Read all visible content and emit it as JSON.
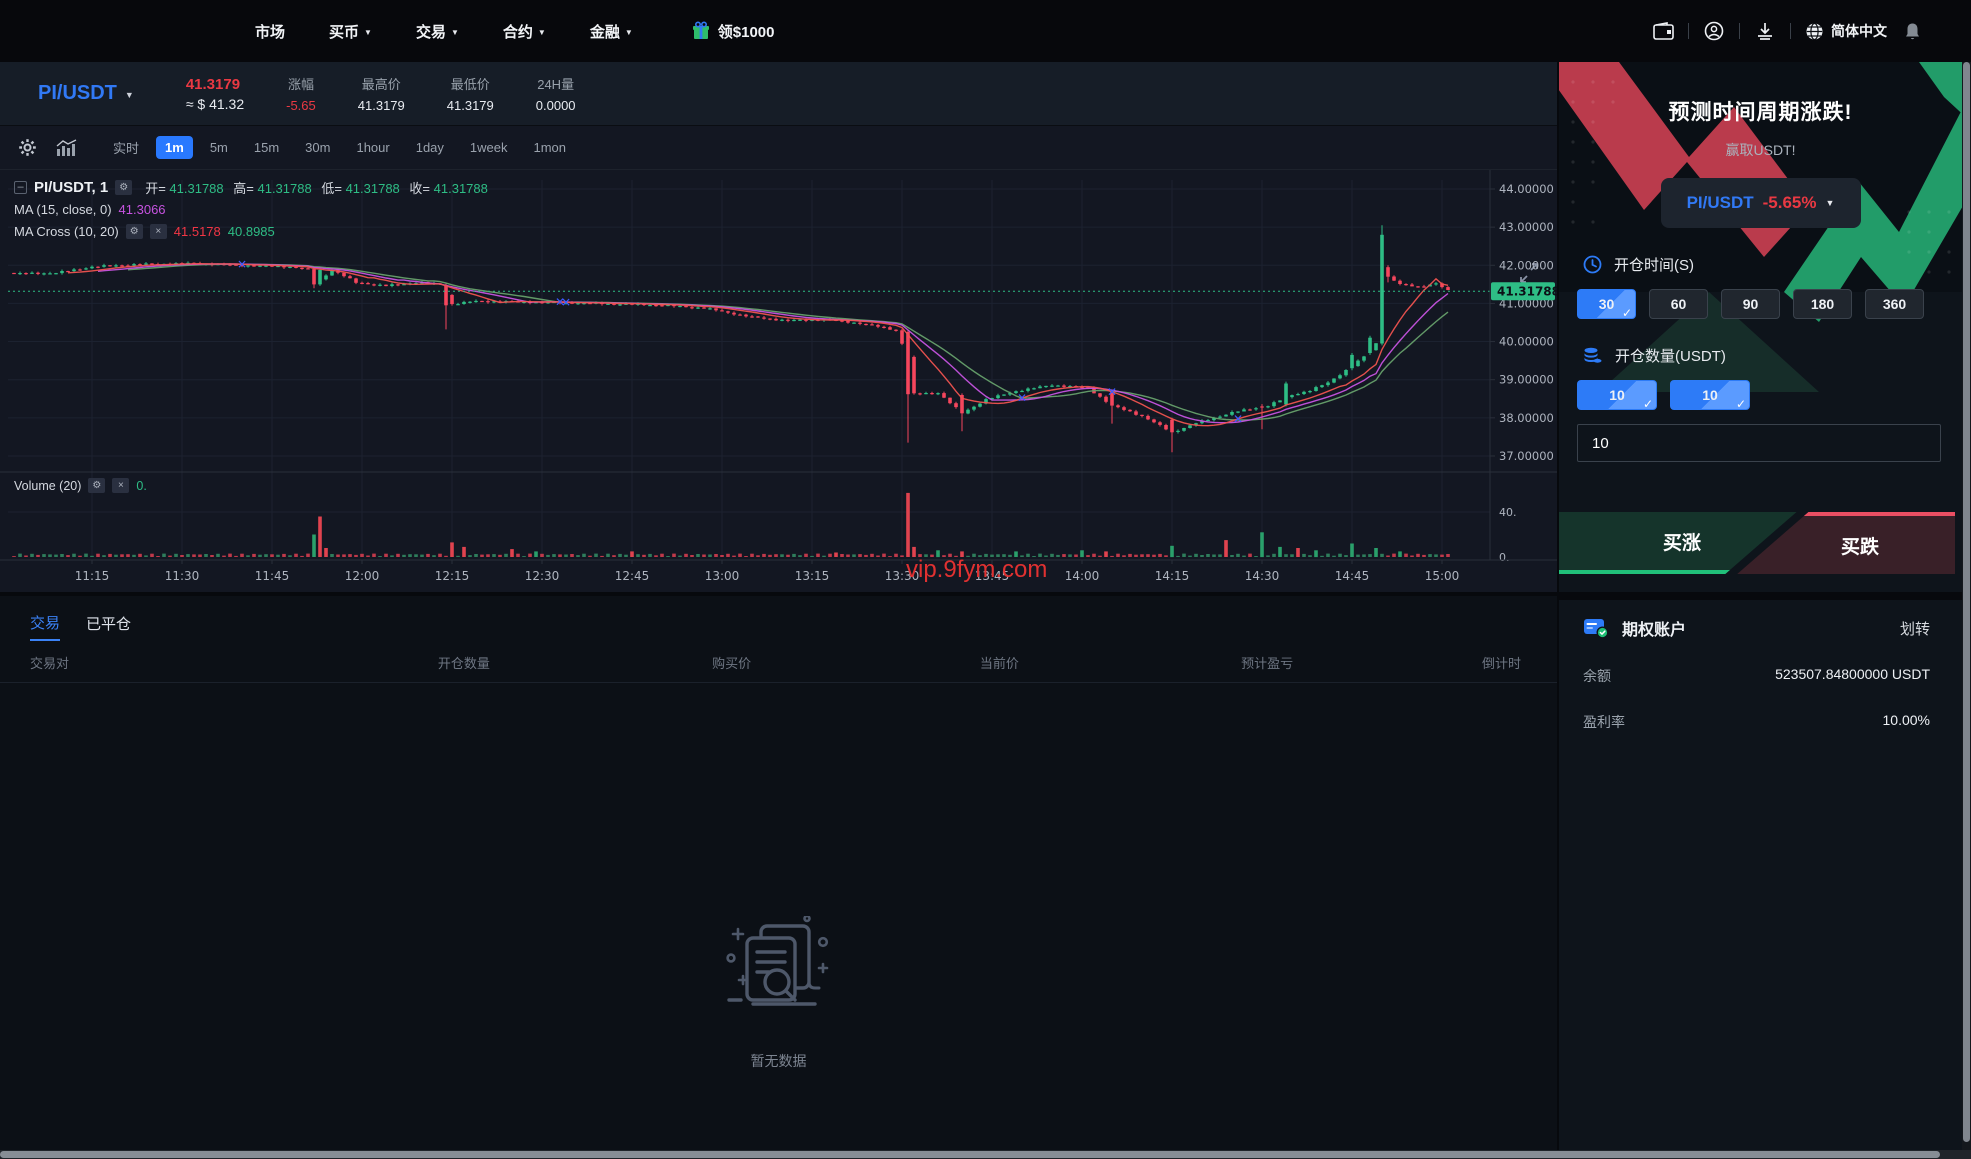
{
  "nav": {
    "items": [
      {
        "label": "市场",
        "dropdown": false
      },
      {
        "label": "买币",
        "dropdown": true
      },
      {
        "label": "交易",
        "dropdown": true
      },
      {
        "label": "合约",
        "dropdown": true
      },
      {
        "label": "金融",
        "dropdown": true
      }
    ],
    "promo": "领$1000",
    "lang": "简体中文"
  },
  "ticker": {
    "pair": "PI/USDT",
    "price": "41.3179",
    "approx": "≈ $ 41.32",
    "stats": [
      {
        "label": "涨幅",
        "value": "-5.65"
      },
      {
        "label": "最高价",
        "value": "41.3179"
      },
      {
        "label": "最低价",
        "value": "41.3179"
      },
      {
        "label": "24H量",
        "value": "0.0000"
      }
    ]
  },
  "toolbar": {
    "intervals": [
      "实时",
      "1m",
      "5m",
      "15m",
      "30m",
      "1hour",
      "1day",
      "1week",
      "1mon"
    ],
    "selected": "1m"
  },
  "chart_data": {
    "type": "candlestick",
    "symbol": "PI/USDT",
    "legend_symbol": "PI/USDT, 1",
    "watermark": "vip.9fym.com",
    "ohlc": {
      "open_label": "开=",
      "high_label": "高=",
      "low_label": "低=",
      "close_label": "收=",
      "open": "41.31788",
      "high": "41.31788",
      "low": "41.31788",
      "close": "41.31788"
    },
    "ma15": {
      "label": "MA (15, close, 0)",
      "value": "41.3066"
    },
    "ma_cross": {
      "label": "MA Cross (10, 20)",
      "fast_value": "41.5178",
      "slow_value": "40.8985"
    },
    "volume": {
      "label": "Volume (20)",
      "value": "0.",
      "ticks": [
        "40.",
        "0."
      ],
      "grid_value": 40
    },
    "current_price": 41.31788,
    "price_tag": "41.31788",
    "y_ticks": [
      "44.00000",
      "43.00000",
      "42.00000",
      "41.00000",
      "40.00000",
      "39.00000",
      "38.00000",
      "37.00000"
    ],
    "x_labels": [
      "11:15",
      "11:30",
      "11:45",
      "12:00",
      "12:15",
      "12:30",
      "12:45",
      "13:00",
      "13:15",
      "13:30",
      "13:45",
      "14:00",
      "14:15",
      "14:30",
      "14:45",
      "15:00"
    ],
    "x_label_first_index": 13,
    "x_label_step": 15,
    "candle_count": 240,
    "price_anchors": [
      [
        0,
        41.78
      ],
      [
        7,
        41.8
      ],
      [
        13,
        41.96
      ],
      [
        20,
        42.02
      ],
      [
        29,
        42.05
      ],
      [
        38,
        42.0
      ],
      [
        46,
        41.96
      ],
      [
        49,
        41.9
      ],
      [
        51,
        41.62
      ],
      [
        53,
        41.88
      ],
      [
        57,
        41.55
      ],
      [
        62,
        41.46
      ],
      [
        67,
        41.55
      ],
      [
        71,
        41.5
      ],
      [
        73,
        40.98
      ],
      [
        77,
        41.06
      ],
      [
        87,
        41.03
      ],
      [
        97,
        41.0
      ],
      [
        107,
        40.96
      ],
      [
        115,
        40.88
      ],
      [
        123,
        40.64
      ],
      [
        129,
        40.55
      ],
      [
        135,
        40.58
      ],
      [
        141,
        40.48
      ],
      [
        147,
        40.3
      ],
      [
        149,
        39.6
      ],
      [
        150,
        38.62
      ],
      [
        154,
        38.66
      ],
      [
        158,
        38.12
      ],
      [
        162,
        38.48
      ],
      [
        167,
        38.7
      ],
      [
        173,
        38.86
      ],
      [
        179,
        38.78
      ],
      [
        183,
        38.32
      ],
      [
        188,
        38.05
      ],
      [
        193,
        37.62
      ],
      [
        197,
        37.86
      ],
      [
        203,
        38.14
      ],
      [
        209,
        38.32
      ],
      [
        213,
        38.6
      ],
      [
        216,
        38.72
      ],
      [
        219,
        38.92
      ],
      [
        222,
        39.25
      ],
      [
        225,
        39.6
      ],
      [
        227,
        39.95
      ],
      [
        228,
        42.8
      ],
      [
        229,
        41.7
      ],
      [
        231,
        41.5
      ],
      [
        234,
        41.44
      ],
      [
        237,
        41.52
      ],
      [
        239,
        41.33
      ]
    ],
    "feature_candles": [
      {
        "i": 50,
        "o": 41.9,
        "h": 41.94,
        "l": 41.4,
        "c": 41.5
      },
      {
        "i": 51,
        "o": 41.5,
        "h": 41.9,
        "l": 41.46,
        "c": 41.88
      },
      {
        "i": 72,
        "o": 41.48,
        "h": 41.52,
        "l": 40.32,
        "c": 40.95
      },
      {
        "i": 149,
        "o": 40.25,
        "h": 40.3,
        "l": 37.35,
        "c": 38.62
      },
      {
        "i": 158,
        "o": 38.6,
        "h": 38.64,
        "l": 37.65,
        "c": 38.12
      },
      {
        "i": 183,
        "o": 38.7,
        "h": 38.74,
        "l": 37.85,
        "c": 38.32
      },
      {
        "i": 193,
        "o": 37.95,
        "h": 38.0,
        "l": 37.1,
        "c": 37.62
      },
      {
        "i": 208,
        "o": 38.3,
        "h": 38.36,
        "l": 37.7,
        "c": 38.28
      },
      {
        "i": 212,
        "o": 38.35,
        "h": 38.95,
        "l": 38.3,
        "c": 38.9
      },
      {
        "i": 223,
        "o": 39.3,
        "h": 39.7,
        "l": 39.25,
        "c": 39.65
      },
      {
        "i": 226,
        "o": 39.7,
        "h": 40.15,
        "l": 39.65,
        "c": 40.1
      },
      {
        "i": 228,
        "o": 39.95,
        "h": 43.05,
        "l": 39.9,
        "c": 42.8
      },
      {
        "i": 229,
        "o": 41.95,
        "h": 42.0,
        "l": 41.55,
        "c": 41.7
      }
    ],
    "volume_spikes": [
      [
        50,
        20,
        "g"
      ],
      [
        51,
        36,
        "r"
      ],
      [
        52,
        8,
        "r"
      ],
      [
        73,
        13,
        "r"
      ],
      [
        75,
        9,
        "r"
      ],
      [
        83,
        7,
        "r"
      ],
      [
        87,
        5,
        "g"
      ],
      [
        103,
        5,
        "r"
      ],
      [
        137,
        4,
        "r"
      ],
      [
        149,
        57,
        "r"
      ],
      [
        150,
        9,
        "r"
      ],
      [
        154,
        6,
        "g"
      ],
      [
        158,
        5,
        "r"
      ],
      [
        167,
        5,
        "g"
      ],
      [
        178,
        6,
        "g"
      ],
      [
        182,
        5,
        "r"
      ],
      [
        193,
        10,
        "g"
      ],
      [
        202,
        15,
        "r"
      ],
      [
        208,
        22,
        "g"
      ],
      [
        211,
        9,
        "g"
      ],
      [
        214,
        8,
        "r"
      ],
      [
        217,
        6,
        "g"
      ],
      [
        223,
        12,
        "g"
      ],
      [
        227,
        8,
        "g"
      ],
      [
        231,
        5,
        "g"
      ]
    ],
    "colors": {
      "up": "#2ebd85",
      "down": "#f6465d",
      "ma_fast": "#ef5350",
      "ma_mid": "#c653e0",
      "ma_slow": "#66a06b",
      "cross_marker": "#3d5afe",
      "grid": "#1c2230",
      "axis_text": "#aeb4bf",
      "axis_line": "#2a2f3a"
    }
  },
  "positions": {
    "tabs": [
      {
        "label": "交易",
        "active": true
      },
      {
        "label": "已平仓",
        "active": false
      }
    ],
    "headers": [
      "交易对",
      "开仓数量",
      "购买价",
      "当前价",
      "预计盈亏",
      "倒计时"
    ],
    "empty_text": "暂无数据"
  },
  "panel": {
    "title": "预测时间周期涨跌!",
    "subtitle": "赢取USDT!",
    "selector_pair": "PI/USDT",
    "selector_change": "-5.65%",
    "duration_label": "开仓时间(S)",
    "duration_options": [
      "30",
      "60",
      "90",
      "180",
      "360"
    ],
    "duration_selected": "30",
    "amount_label": "开仓数量(USDT)",
    "amount_presets": [
      "10",
      "10"
    ],
    "amount_value": "10",
    "buy_up": "买涨",
    "buy_down": "买跌"
  },
  "account": {
    "title": "期权账户",
    "transfer": "划转",
    "rows": [
      {
        "label": "余额",
        "value": "523507.84800000 USDT"
      },
      {
        "label": "盈利率",
        "value": "10.00%"
      }
    ]
  }
}
